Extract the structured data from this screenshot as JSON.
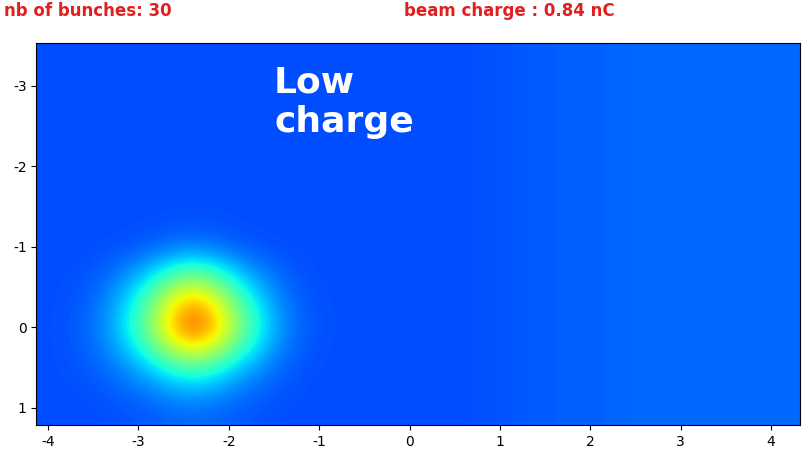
{
  "chart_data": {
    "type": "heatmap",
    "title": "nb of bunches: 30",
    "subtitle": "beam charge : 0.84 nC",
    "annotations": [
      {
        "text": "Low\ncharge"
      }
    ],
    "xlim": [
      -4.13,
      4.32
    ],
    "ylim": [
      1.22,
      -3.53
    ],
    "xticks": [
      -4,
      -3,
      -2,
      -1,
      0,
      1,
      2,
      3,
      4
    ],
    "yticks": [
      -3,
      -2,
      -1,
      0,
      1
    ],
    "clim": [
      0,
      1
    ],
    "cells": [
      [
        0.2,
        0.2,
        0.2,
        0.2,
        0.2,
        0.2,
        0.2,
        0.2,
        0.2,
        0.2,
        0.21,
        0.22,
        0.22,
        0.23,
        0.23,
        0.23,
        0.23
      ],
      [
        0.2,
        0.2,
        0.2,
        0.2,
        0.2,
        0.2,
        0.2,
        0.2,
        0.2,
        0.2,
        0.21,
        0.22,
        0.22,
        0.23,
        0.23,
        0.23,
        0.23
      ],
      [
        0.2,
        0.2,
        0.2,
        0.2,
        0.2,
        0.2,
        0.2,
        0.2,
        0.2,
        0.2,
        0.21,
        0.22,
        0.22,
        0.23,
        0.23,
        0.23,
        0.23
      ],
      [
        0.2,
        0.2,
        0.2,
        0.2,
        0.2,
        0.2,
        0.2,
        0.2,
        0.2,
        0.2,
        0.21,
        0.22,
        0.22,
        0.23,
        0.23,
        0.23,
        0.23
      ],
      [
        0.2,
        0.2,
        0.2,
        0.2,
        0.2,
        0.2,
        0.2,
        0.2,
        0.2,
        0.2,
        0.21,
        0.22,
        0.22,
        0.23,
        0.23,
        0.23,
        0.23
      ],
      [
        0.2,
        0.2,
        0.21,
        0.25,
        0.21,
        0.2,
        0.2,
        0.2,
        0.2,
        0.2,
        0.21,
        0.22,
        0.22,
        0.23,
        0.23,
        0.23,
        0.23
      ],
      [
        0.2,
        0.22,
        0.4,
        0.75,
        0.4,
        0.22,
        0.2,
        0.2,
        0.2,
        0.2,
        0.21,
        0.22,
        0.22,
        0.23,
        0.23,
        0.23,
        0.23
      ],
      [
        0.2,
        0.24,
        0.5,
        1.0,
        0.55,
        0.24,
        0.2,
        0.2,
        0.2,
        0.2,
        0.21,
        0.22,
        0.22,
        0.23,
        0.23,
        0.23,
        0.23
      ],
      [
        0.2,
        0.22,
        0.3,
        0.45,
        0.3,
        0.21,
        0.2,
        0.2,
        0.2,
        0.2,
        0.21,
        0.22,
        0.22,
        0.23,
        0.23,
        0.23,
        0.23
      ],
      [
        0.2,
        0.2,
        0.21,
        0.23,
        0.21,
        0.2,
        0.2,
        0.2,
        0.2,
        0.2,
        0.21,
        0.22,
        0.22,
        0.23,
        0.23,
        0.23,
        0.23
      ]
    ]
  }
}
